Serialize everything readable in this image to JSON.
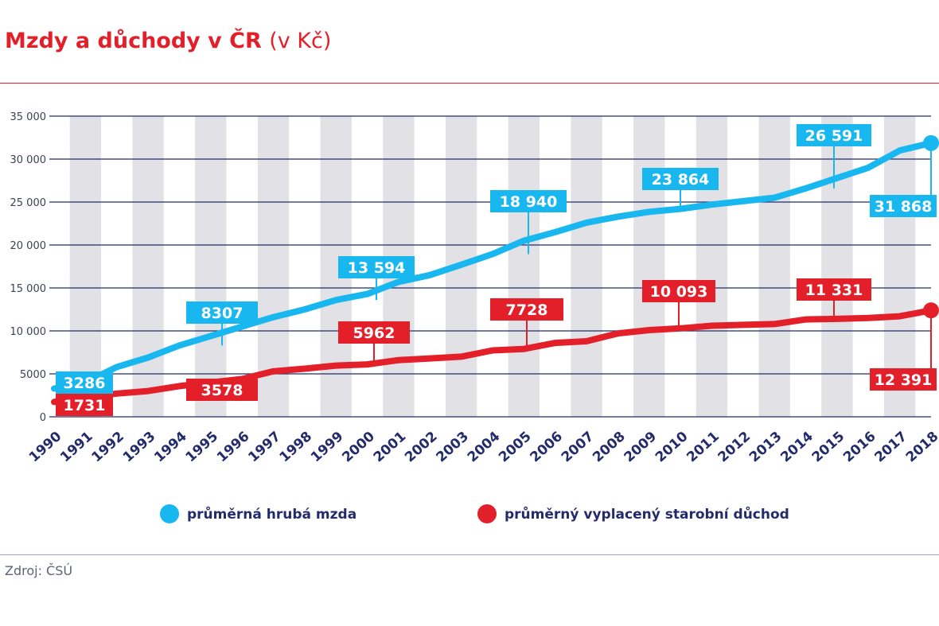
{
  "title": "Mzdy a důchody v ČR",
  "title_unit": "(v Kč)",
  "source": "Zdroj: ČSÚ",
  "colors": {
    "wage": "#19b7ef",
    "pension": "#e3202a",
    "title": "#e3202a",
    "grid": "#232b6b",
    "stripe": "#e2e2e6"
  },
  "chart_data": {
    "type": "line",
    "title": "Mzdy a důchody v ČR",
    "ylim": [
      0,
      35000
    ],
    "yticks": [
      "0",
      "5000",
      "10 000",
      "15 000",
      "20 000",
      "25 000",
      "30 000",
      "35 000"
    ],
    "ytick_values": [
      0,
      5000,
      10000,
      15000,
      20000,
      25000,
      30000,
      35000
    ],
    "x": [
      "1990",
      "1991",
      "1992",
      "1993",
      "1994",
      "1995",
      "1996",
      "1997",
      "1998",
      "1999",
      "2000",
      "2001",
      "2002",
      "2003",
      "2004",
      "2005",
      "2006",
      "2007",
      "2008",
      "2009",
      "2010",
      "2011",
      "2012",
      "2013",
      "2014",
      "2015",
      "2016",
      "2017",
      "2018"
    ],
    "grid": true,
    "legend_position": "bottom",
    "series": [
      {
        "name": "průměrná hrubá mzda",
        "values": [
          3286,
          4000,
          5800,
          6900,
          8307,
          9400,
          10500,
          11600,
          12500,
          13594,
          14300,
          15700,
          16500,
          17700,
          18940,
          20500,
          21500,
          22600,
          23300,
          23864,
          24200,
          24700,
          25100,
          25500,
          26591,
          27800,
          29000,
          31000,
          31868
        ],
        "labels": [
          {
            "x": "1990",
            "value": 3286,
            "text": "3286"
          },
          {
            "x": "1994",
            "value": 8307,
            "text": "8307"
          },
          {
            "x": "1999",
            "value": 13594,
            "text": "13 594"
          },
          {
            "x": "2004",
            "value": 18940,
            "text": "18 940"
          },
          {
            "x": "2009",
            "value": 23864,
            "text": "23 864"
          },
          {
            "x": "2014",
            "value": 26591,
            "text": "26 591"
          },
          {
            "x": "2018",
            "value": 31868,
            "text": "31 868"
          }
        ]
      },
      {
        "name": "průměrný vyplacený starobní důchod",
        "values": [
          1731,
          2300,
          2700,
          3000,
          3578,
          4000,
          4400,
          5300,
          5600,
          5962,
          6100,
          6600,
          6800,
          7000,
          7728,
          7900,
          8600,
          8800,
          9700,
          10093,
          10300,
          10600,
          10700,
          10800,
          11331,
          11400,
          11500,
          11700,
          12391
        ],
        "labels": [
          {
            "x": "1990",
            "value": 1731,
            "text": "1731"
          },
          {
            "x": "1994",
            "value": 3578,
            "text": "3578"
          },
          {
            "x": "1999",
            "value": 5962,
            "text": "5962"
          },
          {
            "x": "2004",
            "value": 7728,
            "text": "7728"
          },
          {
            "x": "2009",
            "value": 10093,
            "text": "10 093"
          },
          {
            "x": "2014",
            "value": 11331,
            "text": "11 331"
          },
          {
            "x": "2018",
            "value": 12391,
            "text": "12 391"
          }
        ]
      }
    ]
  }
}
